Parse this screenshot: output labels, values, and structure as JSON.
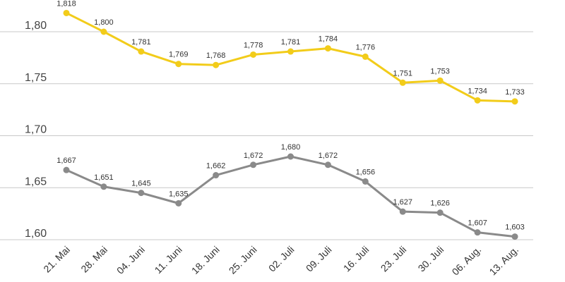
{
  "chart_data": {
    "type": "line",
    "title": "",
    "xlabel": "",
    "ylabel": "",
    "categories": [
      "21. Mai",
      "28. Mai",
      "04. Juni",
      "11. Juni",
      "18. Juni",
      "25. Juni",
      "02. Juli",
      "09. Juli",
      "16. Juli",
      "23. Juli",
      "30. Juli",
      "06. Aug.",
      "13. Aug."
    ],
    "yticks": [
      1.6,
      1.65,
      1.7,
      1.75,
      1.8
    ],
    "ytick_labels": [
      "1,60",
      "1,65",
      "1,70",
      "1,75",
      "1,80"
    ],
    "ylim": [
      1.6,
      1.8
    ],
    "grid": true,
    "series": [
      {
        "name": "series-yellow",
        "color": "#f2cc1a",
        "values": [
          1.818,
          1.8,
          1.781,
          1.769,
          1.768,
          1.778,
          1.781,
          1.784,
          1.776,
          1.751,
          1.753,
          1.734,
          1.733
        ],
        "labels": [
          "1,818",
          "1,800",
          "1,781",
          "1,769",
          "1,768",
          "1,778",
          "1,781",
          "1,784",
          "1,776",
          "1,751",
          "1,753",
          "1,734",
          "1,733"
        ]
      },
      {
        "name": "series-gray",
        "color": "#8a8a8a",
        "values": [
          1.667,
          1.651,
          1.645,
          1.635,
          1.662,
          1.672,
          1.68,
          1.672,
          1.656,
          1.627,
          1.626,
          1.607,
          1.603
        ],
        "labels": [
          "1,667",
          "1,651",
          "1,645",
          "1,635",
          "1,662",
          "1,672",
          "1,680",
          "1,672",
          "1,656",
          "1,627",
          "1,626",
          "1,607",
          "1,603"
        ]
      }
    ]
  }
}
